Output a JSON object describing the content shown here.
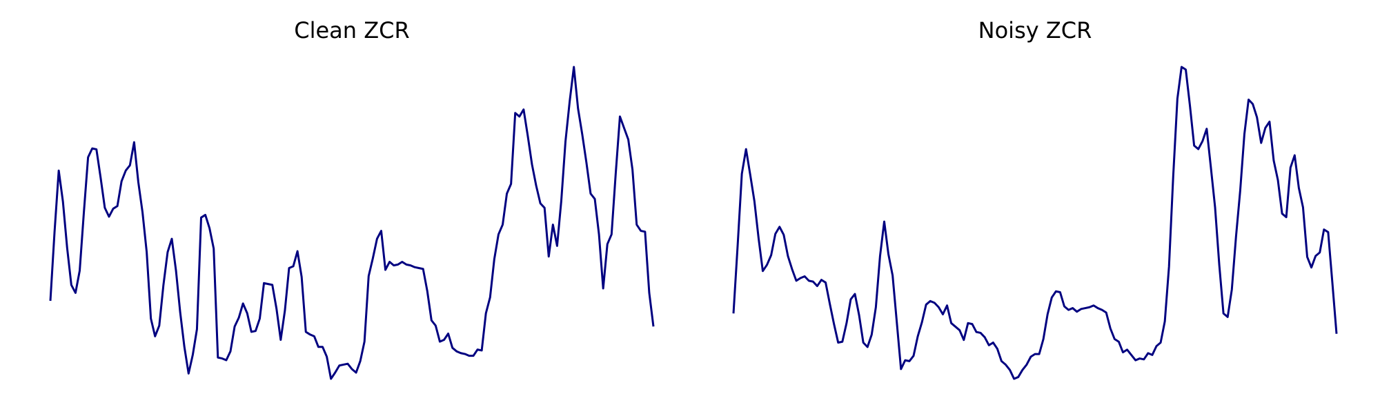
{
  "chart_data": [
    {
      "type": "line",
      "title": "Clean ZCR",
      "color": "#000080",
      "values": [
        100,
        178,
        247,
        212,
        160,
        118,
        109,
        134,
        200,
        262,
        272,
        271,
        239,
        205,
        195,
        204,
        207,
        235,
        247,
        253,
        279,
        234,
        200,
        155,
        80,
        60,
        72,
        118,
        155,
        170,
        134,
        87,
        48,
        18,
        39,
        68,
        194,
        197,
        182,
        159,
        36,
        35,
        33,
        43,
        71,
        81,
        97,
        86,
        65,
        66,
        80,
        120,
        119,
        118,
        91,
        56,
        89,
        137,
        139,
        156,
        127,
        65,
        62,
        60,
        48,
        48,
        37,
        12,
        19,
        27,
        28,
        29,
        23,
        19,
        32,
        54,
        128,
        148,
        170,
        179,
        135,
        144,
        140,
        141,
        144,
        141,
        140,
        138,
        137,
        136,
        111,
        78,
        72,
        54,
        56,
        63,
        47,
        43,
        41,
        40,
        38,
        38,
        45,
        44,
        86,
        104,
        147,
        175,
        186,
        221,
        232,
        312,
        308,
        316,
        286,
        254,
        230,
        210,
        205,
        150,
        186,
        162,
        213,
        280,
        325,
        364,
        317,
        288,
        256,
        221,
        215,
        175,
        114,
        164,
        175,
        244,
        308,
        295,
        282,
        248,
        186,
        179,
        178,
        109,
        71
      ]
    },
    {
      "type": "line",
      "title": "Noisy ZCR",
      "color": "#000080",
      "values": [
        85,
        162,
        243,
        271,
        242,
        212,
        170,
        133,
        140,
        151,
        175,
        183,
        174,
        150,
        135,
        122,
        125,
        127,
        122,
        121,
        116,
        123,
        120,
        96,
        73,
        52,
        53,
        74,
        101,
        107,
        83,
        52,
        47,
        61,
        92,
        150,
        189,
        152,
        128,
        75,
        22,
        32,
        31,
        37,
        59,
        75,
        95,
        99,
        97,
        92,
        84,
        94,
        74,
        70,
        66,
        55,
        74,
        73,
        64,
        63,
        58,
        49,
        52,
        45,
        31,
        27,
        21,
        11,
        13,
        21,
        27,
        36,
        39,
        39,
        56,
        84,
        103,
        110,
        109,
        93,
        89,
        91,
        87,
        90,
        91,
        92,
        94,
        91,
        89,
        86,
        68,
        56,
        53,
        41,
        44,
        38,
        32,
        34,
        33,
        40,
        38,
        48,
        52,
        76,
        138,
        240,
        328,
        364,
        361,
        320,
        275,
        271,
        280,
        294,
        250,
        205,
        140,
        85,
        81,
        112,
        172,
        224,
        288,
        327,
        322,
        307,
        278,
        295,
        302,
        258,
        236,
        198,
        194,
        250,
        264,
        227,
        205,
        149,
        137,
        150,
        154,
        180,
        177,
        120,
        62
      ]
    }
  ]
}
